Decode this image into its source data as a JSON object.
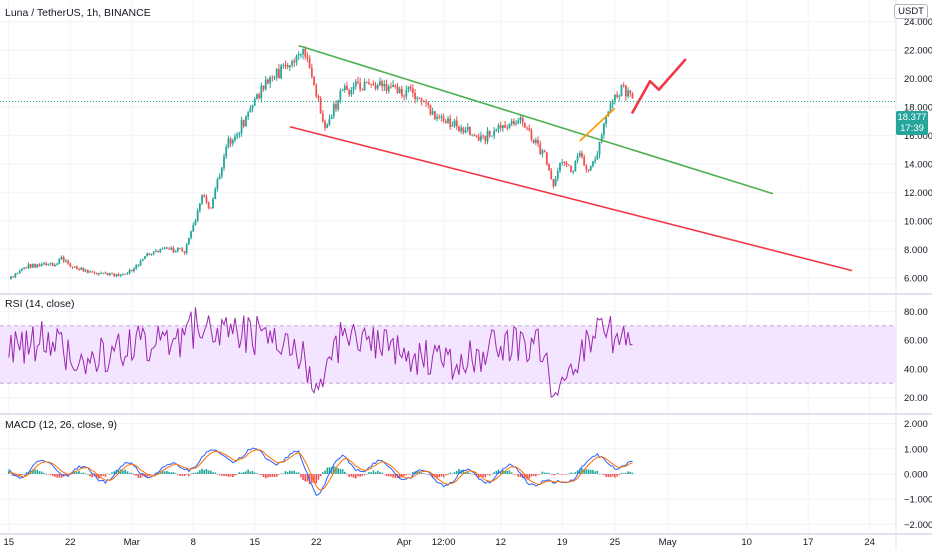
{
  "chart_data": [
    {
      "type": "candlestick",
      "title": "Luna / TetherUS, 1h, BINANCE",
      "currency": "USDT",
      "last_price": "18.377",
      "countdown": "17:39",
      "ylim": [
        5,
        25.5
      ],
      "y_ticks": [
        "24.000",
        "22.000",
        "20.000",
        "18.000",
        "16.000",
        "14.000",
        "12.000",
        "10.000",
        "8.000",
        "6.000"
      ],
      "y_tick_values": [
        24,
        22,
        20,
        18,
        16,
        14,
        12,
        10,
        8,
        6
      ],
      "price_path": [
        [
          "Feb 15",
          5.9
        ],
        [
          "Feb 17",
          6.8
        ],
        [
          "Feb 20",
          6.9
        ],
        [
          "Feb 21",
          7.3
        ],
        [
          "Feb 22",
          6.9
        ],
        [
          "Feb 24",
          6.4
        ],
        [
          "Feb 26",
          6.3
        ],
        [
          "Feb 27",
          6.1
        ],
        [
          "Mar 1",
          6.5
        ],
        [
          "Mar 3",
          7.7
        ],
        [
          "Mar 5",
          8.0
        ],
        [
          "Mar 7",
          7.9
        ],
        [
          "Mar 8",
          9.7
        ],
        [
          "Mar 9",
          11.6
        ],
        [
          "Mar 10",
          11.0
        ],
        [
          "Mar 11",
          13.2
        ],
        [
          "Mar 12",
          15.5
        ],
        [
          "Mar 13",
          16.2
        ],
        [
          "Mar 14",
          17.2
        ],
        [
          "Mar 15",
          18.4
        ],
        [
          "Mar 16",
          19.5
        ],
        [
          "Mar 17",
          19.9
        ],
        [
          "Mar 18",
          20.5
        ],
        [
          "Mar 19",
          21.2
        ],
        [
          "Mar 20",
          21.9
        ],
        [
          "Mar 21",
          21.6
        ],
        [
          "Mar 22",
          19.0
        ],
        [
          "Mar 23",
          16.3
        ],
        [
          "Mar 24",
          17.8
        ],
        [
          "Mar 25",
          19.2
        ],
        [
          "Mar 27",
          19.4
        ],
        [
          "Mar 29",
          19.6
        ],
        [
          "Mar 31",
          19.3
        ],
        [
          "Apr 2",
          18.9
        ],
        [
          "Apr 3",
          18.5
        ],
        [
          "Apr 5",
          17.0
        ],
        [
          "Apr 6",
          16.9
        ],
        [
          "Apr 8",
          16.3
        ],
        [
          "Apr 10",
          15.8
        ],
        [
          "Apr 12",
          16.6
        ],
        [
          "Apr 14",
          17.1
        ],
        [
          "Apr 15",
          16.2
        ],
        [
          "Apr 17",
          14.6
        ],
        [
          "Apr 18",
          12.6
        ],
        [
          "Apr 19",
          14.4
        ],
        [
          "Apr 20",
          13.4
        ],
        [
          "Apr 21",
          14.5
        ],
        [
          "Apr 22",
          13.6
        ],
        [
          "Apr 23",
          14.9
        ],
        [
          "Apr 24",
          17.0
        ],
        [
          "Apr 25",
          18.6
        ],
        [
          "Apr 26",
          19.3
        ],
        [
          "Apr 27",
          18.4
        ]
      ],
      "annotations": [
        {
          "name": "upper-trendline",
          "color": "#4caf50",
          "from": [
            "Mar 20",
            22.3
          ],
          "to": [
            "May 13",
            11.9
          ]
        },
        {
          "name": "lower-trendline",
          "color": "#f23645",
          "from": [
            "Mar 19",
            16.6
          ],
          "to": [
            "May 22",
            6.5
          ]
        },
        {
          "name": "breakout-line",
          "color": "#ff9800",
          "from": [
            "Apr 21",
            15.6
          ],
          "to": [
            "Apr 25",
            17.9
          ]
        },
        {
          "name": "projection-arrow",
          "color": "#f23645",
          "points": [
            [
              "Apr 27",
              17.6
            ],
            [
              "Apr 29",
              19.8
            ],
            [
              "Apr 30",
              19.2
            ],
            [
              "May 3",
              21.3
            ]
          ]
        }
      ]
    },
    {
      "type": "line",
      "title": "RSI (14, close)",
      "color": "#9c27b0",
      "band": [
        30,
        70
      ],
      "ylim": [
        10,
        90
      ],
      "y_ticks": [
        "80.00",
        "60.00",
        "40.00",
        "20.00"
      ],
      "y_tick_values": [
        80,
        60,
        40,
        20
      ],
      "values_approx": [
        [
          "Feb 15",
          55
        ],
        [
          "Feb 19",
          60
        ],
        [
          "Feb 22",
          50
        ],
        [
          "Feb 26",
          48
        ],
        [
          "Mar 1",
          60
        ],
        [
          "Mar 5",
          56
        ],
        [
          "Mar 9",
          72
        ],
        [
          "Mar 12",
          68
        ],
        [
          "Mar 15",
          63
        ],
        [
          "Mar 19",
          62
        ],
        [
          "Mar 22",
          30
        ],
        [
          "Mar 25",
          62
        ],
        [
          "Mar 30",
          55
        ],
        [
          "Apr 3",
          47
        ],
        [
          "Apr 8",
          46
        ],
        [
          "Apr 12",
          56
        ],
        [
          "Apr 16",
          60
        ],
        [
          "Apr 18",
          28
        ],
        [
          "Apr 21",
          52
        ],
        [
          "Apr 24",
          66
        ],
        [
          "Apr 27",
          60
        ]
      ]
    },
    {
      "type": "histogram",
      "title": "MACD (12, 26, close, 9)",
      "colors": {
        "macd": "#2962ff",
        "signal": "#ff6d00",
        "hist_up": "#26a69a",
        "hist_down": "#ef5350"
      },
      "ylim": [
        -2.3,
        2.3
      ],
      "y_ticks": [
        "2.000",
        "1.000",
        "0.000",
        "−1.000",
        "−2.000"
      ],
      "y_tick_values": [
        2,
        1,
        0,
        -1,
        -2
      ],
      "values_approx": [
        [
          "Feb 15",
          0.1
        ],
        [
          "Feb 20",
          0.3
        ],
        [
          "Feb 25",
          -0.1
        ],
        [
          "Mar 1",
          0.2
        ],
        [
          "Mar 5",
          0.1
        ],
        [
          "Mar 9",
          0.6
        ],
        [
          "Mar 12",
          0.8
        ],
        [
          "Mar 16",
          0.7
        ],
        [
          "Mar 20",
          0.6
        ],
        [
          "Mar 22",
          -0.6
        ],
        [
          "Mar 25",
          0.5
        ],
        [
          "Mar 30",
          0.2
        ],
        [
          "Apr 4",
          -0.2
        ],
        [
          "Apr 9",
          -0.1
        ],
        [
          "Apr 14",
          0.1
        ],
        [
          "Apr 18",
          -0.6
        ],
        [
          "Apr 21",
          0.3
        ],
        [
          "Apr 24",
          0.6
        ],
        [
          "Apr 27",
          0.3
        ]
      ]
    }
  ],
  "x_axis": {
    "ticks": [
      "15",
      "22",
      "Mar",
      "8",
      "15",
      "22",
      "Apr",
      "12:00",
      "12",
      "19",
      "25",
      "May",
      "10",
      "17",
      "24"
    ],
    "tick_dates": [
      "Feb 15",
      "Feb 22",
      "Mar 1",
      "Mar 8",
      "Mar 15",
      "Mar 22",
      "Apr 1",
      "Apr 5 12:00",
      "Apr 12",
      "Apr 19",
      "Apr 25",
      "May 1",
      "May 10",
      "May 17",
      "May 24"
    ],
    "range": [
      "Feb 14",
      "May 27"
    ]
  },
  "colors": {
    "up": "#26a69a",
    "down": "#ef5350",
    "grid": "#f0f3fa",
    "separator": "#e0e3eb",
    "axis_text": "#131722",
    "rsi_band_fill": "#f3e5ff",
    "rsi_band_border": "#c7a8dd"
  }
}
